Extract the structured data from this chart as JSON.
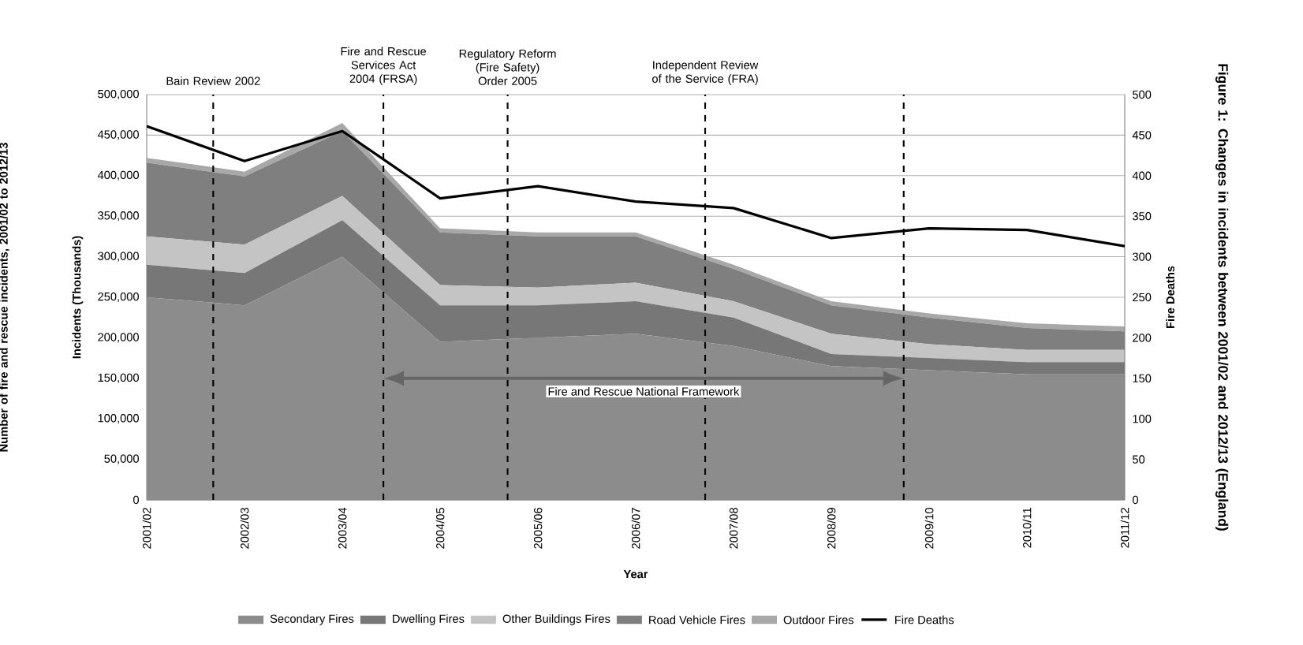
{
  "chart_data": {
    "type": "area",
    "stacked": true,
    "title": "Figure 1: Changes in incidents between 2001/02 and 2012/13 (England)",
    "xlabel": "Year",
    "ylabel": "Incidents (Thousands)",
    "y2label": "Fire Deaths",
    "annotations": [
      "Number of fire and rescue incidents, 2001/02 to 2012/13",
      "Bain Review 2002",
      "Fire and Rescue Services Act 2004 (FRSA)",
      "Regulatory Reform (Fire Safety) Order 2005",
      "Independent Review of the Service (FRA)",
      "Fire and Rescue National Framework"
    ],
    "categories": [
      "2001/02",
      "2002/03",
      "2003/04",
      "2004/05",
      "2005/06",
      "2006/07",
      "2007/08",
      "2008/09",
      "2009/10",
      "2010/11",
      "2011/12"
    ],
    "series": [
      {
        "name": "Secondary Fires",
        "color": "#8c8c8c",
        "values": [
          250000,
          240000,
          300000,
          195000,
          200000,
          205000,
          190000,
          165000,
          160000,
          155000,
          155000
        ]
      },
      {
        "name": "Dwelling Fires",
        "color": "#777777",
        "values": [
          40000,
          40000,
          45000,
          45000,
          40000,
          40000,
          35000,
          15000,
          15000,
          15000,
          15000
        ]
      },
      {
        "name": "Other Buildings Fires",
        "color": "#c4c4c4",
        "values": [
          35000,
          35000,
          30000,
          25000,
          22000,
          23000,
          20000,
          25000,
          17000,
          15000,
          15000
        ]
      },
      {
        "name": "Road Vehicle Fires",
        "color": "#7f7f7f",
        "values": [
          91000,
          84000,
          80000,
          65000,
          63000,
          57000,
          40000,
          35000,
          33000,
          27000,
          23000
        ]
      },
      {
        "name": "Outdoor Fires",
        "color": "#a8a8a8",
        "values": [
          6000,
          6000,
          10000,
          5000,
          5000,
          5000,
          5000,
          5000,
          5000,
          6000,
          6000
        ]
      },
      {
        "name": "Fire Deaths",
        "type": "line",
        "axis": "y2",
        "color": "#000000",
        "values": [
          461,
          418,
          455,
          372,
          387,
          368,
          360,
          323,
          335,
          333,
          313
        ]
      }
    ],
    "ylim": [
      0,
      500000
    ],
    "yticks": [
      {
        "value": 0,
        "label": "0"
      },
      {
        "value": 50000,
        "label": "50,000"
      },
      {
        "value": 100000,
        "label": "100,000"
      },
      {
        "value": 150000,
        "label": "150,000"
      },
      {
        "value": 200000,
        "label": "200,000"
      },
      {
        "value": 250000,
        "label": "250,000"
      },
      {
        "value": 300000,
        "label": "300,000"
      },
      {
        "value": 350000,
        "label": "350,000"
      },
      {
        "value": 400000,
        "label": "400,000"
      },
      {
        "value": 450000,
        "label": "450,000"
      },
      {
        "value": 500000,
        "label": "500,000"
      }
    ],
    "y2lim": [
      0,
      500
    ],
    "y2ticks": [
      0,
      50,
      100,
      150,
      200,
      250,
      300,
      350,
      400,
      450,
      500
    ],
    "grid": "y",
    "legend": "bottom"
  }
}
